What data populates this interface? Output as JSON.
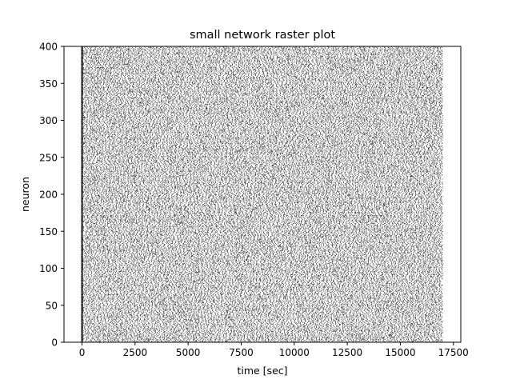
{
  "chart_data": {
    "type": "scatter",
    "title": "small network raster plot",
    "xlabel": "time [sec]",
    "ylabel": "neuron",
    "xlim": [
      -850,
      17850
    ],
    "ylim": [
      0,
      400
    ],
    "x_ticks": [
      0,
      2500,
      5000,
      7500,
      10000,
      12500,
      15000,
      17500
    ],
    "x_tick_labels": [
      "0",
      "2500",
      "5000",
      "7500",
      "10000",
      "12500",
      "15000",
      "17500"
    ],
    "y_ticks": [
      0,
      50,
      100,
      150,
      200,
      250,
      300,
      350,
      400
    ],
    "y_tick_labels": [
      "0",
      "50",
      "100",
      "150",
      "200",
      "250",
      "300",
      "350",
      "400"
    ],
    "grid": false,
    "legend": "none",
    "marker": "vertical-tick",
    "marker_color": "#000000",
    "neurons": [
      0,
      400
    ],
    "spike_time_range": [
      0,
      17000
    ],
    "onset_time": 0,
    "seed": 7
  }
}
